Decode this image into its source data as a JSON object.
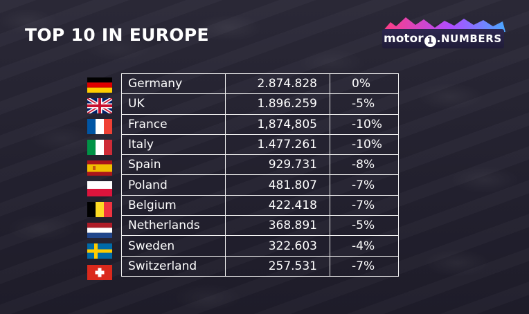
{
  "title": "TOP 10 IN EUROPE",
  "logo": {
    "brand": "motor",
    "numeral": "1",
    "suffix": ".NUMBERS"
  },
  "colors": {
    "background": "#262433",
    "text": "#ffffff",
    "grid_lines": "#f2f2f2",
    "logo_gradient": [
      "#ff3d7f",
      "#b04cff",
      "#4aa8ff"
    ]
  },
  "rows": [
    {
      "country": "Germany",
      "sales": "2.874.828",
      "change": "0%",
      "flag_icon": "germany-flag-icon"
    },
    {
      "country": "UK",
      "sales": "1.896.259",
      "change": "-5%",
      "flag_icon": "uk-flag-icon"
    },
    {
      "country": "France",
      "sales": "1,874,805",
      "change": "-10%",
      "flag_icon": "france-flag-icon"
    },
    {
      "country": "Italy",
      "sales": "1.477.261",
      "change": "-10%",
      "flag_icon": "italy-flag-icon"
    },
    {
      "country": "Spain",
      "sales": "929.731",
      "change": "-8%",
      "flag_icon": "spain-flag-icon"
    },
    {
      "country": "Poland",
      "sales": "481.807",
      "change": "-7%",
      "flag_icon": "poland-flag-icon"
    },
    {
      "country": "Belgium",
      "sales": "422.418",
      "change": "-7%",
      "flag_icon": "belgium-flag-icon"
    },
    {
      "country": "Netherlands",
      "sales": "368.891",
      "change": "-5%",
      "flag_icon": "netherlands-flag-icon"
    },
    {
      "country": "Sweden",
      "sales": "322.603",
      "change": "-4%",
      "flag_icon": "sweden-flag-icon"
    },
    {
      "country": "Switzerland",
      "sales": "257.531",
      "change": "-7%",
      "flag_icon": "switzerland-flag-icon"
    }
  ]
}
